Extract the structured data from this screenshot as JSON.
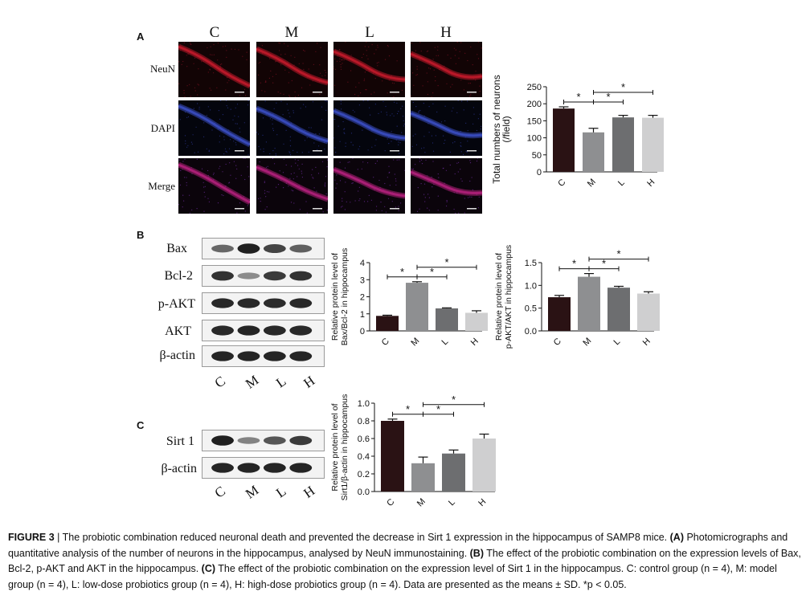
{
  "panels": {
    "a": {
      "letter": "A",
      "columns": [
        "C",
        "M",
        "L",
        "H"
      ],
      "rows": [
        "NeuN",
        "DAPI",
        "Merge"
      ]
    },
    "b": {
      "letter": "B",
      "blot_rows": [
        "Bax",
        "Bcl-2",
        "p-AKT",
        "AKT",
        "β-actin"
      ],
      "lanes": [
        "C",
        "M",
        "L",
        "H"
      ]
    },
    "c": {
      "letter": "C",
      "blot_rows": [
        "Sirt 1",
        "β-actin"
      ],
      "lanes": [
        "C",
        "M",
        "L",
        "H"
      ]
    }
  },
  "chart_data": [
    {
      "id": "neurons",
      "type": "bar",
      "categories": [
        "C",
        "M",
        "L",
        "H"
      ],
      "values": [
        186,
        116,
        160,
        159
      ],
      "errors": [
        5,
        12,
        6,
        7
      ],
      "colors": [
        "#2a1214",
        "#8e8f91",
        "#6d6e70",
        "#cfcfd0"
      ],
      "ylabel": [
        "Total numbers of neurons",
        "(/field)"
      ],
      "ylim": [
        0,
        250
      ],
      "yticks": [
        "0",
        "50",
        "100",
        "150",
        "200",
        "250"
      ],
      "significance": [
        {
          "from": "C",
          "to": "M",
          "label": "*"
        },
        {
          "from": "M",
          "to": "L",
          "label": "*"
        },
        {
          "from": "M",
          "to": "H",
          "label": "*"
        }
      ]
    },
    {
      "id": "bax_bcl2",
      "type": "bar",
      "categories": [
        "C",
        "M",
        "L",
        "H"
      ],
      "values": [
        0.88,
        2.82,
        1.32,
        1.06
      ],
      "errors": [
        0.04,
        0.06,
        0.03,
        0.12
      ],
      "colors": [
        "#2a1214",
        "#8e8f91",
        "#6d6e70",
        "#cfcfd0"
      ],
      "ylabel": [
        "Relative protein level of",
        "Bax/Bcl-2 in hippocampus"
      ],
      "ylim": [
        0,
        4
      ],
      "yticks": [
        "0",
        "1",
        "2",
        "3",
        "4"
      ],
      "significance": [
        {
          "from": "C",
          "to": "M",
          "label": "*"
        },
        {
          "from": "M",
          "to": "L",
          "label": "*"
        },
        {
          "from": "M",
          "to": "H",
          "label": "*"
        }
      ]
    },
    {
      "id": "pakt_akt",
      "type": "bar",
      "categories": [
        "C",
        "M",
        "L",
        "H"
      ],
      "values": [
        0.74,
        1.19,
        0.95,
        0.82
      ],
      "errors": [
        0.04,
        0.07,
        0.03,
        0.04
      ],
      "colors": [
        "#2a1214",
        "#8e8f91",
        "#6d6e70",
        "#cfcfd0"
      ],
      "ylabel": [
        "Relative protein level of",
        "p-AKT/AKT in hippocampus"
      ],
      "ylim": [
        0,
        1.5
      ],
      "yticks": [
        "0.0",
        "0.5",
        "1.0",
        "1.5"
      ],
      "significance": [
        {
          "from": "C",
          "to": "M",
          "label": "*"
        },
        {
          "from": "M",
          "to": "L",
          "label": "*"
        },
        {
          "from": "M",
          "to": "H",
          "label": "*"
        }
      ]
    },
    {
      "id": "sirt1",
      "type": "bar",
      "categories": [
        "C",
        "M",
        "L",
        "H"
      ],
      "values": [
        0.8,
        0.32,
        0.43,
        0.6
      ],
      "errors": [
        0.02,
        0.07,
        0.04,
        0.05
      ],
      "colors": [
        "#2a1214",
        "#8e8f91",
        "#6d6e70",
        "#cfcfd0"
      ],
      "ylabel": [
        "Relative protein level of",
        "Sirt1/β-actin in hippocampus"
      ],
      "ylim": [
        0,
        1.0
      ],
      "yticks": [
        "0.0",
        "0.2",
        "0.4",
        "0.6",
        "0.8",
        "1.0"
      ],
      "significance": [
        {
          "from": "C",
          "to": "M",
          "label": "*"
        },
        {
          "from": "M",
          "to": "L",
          "label": "*"
        },
        {
          "from": "M",
          "to": "H",
          "label": "*"
        }
      ]
    }
  ],
  "caption": {
    "figure_label": "FIGURE 3",
    "separator": " | ",
    "s1": "The probiotic combination reduced neuronal death and prevented the decrease in Sirt 1 expression in the hippocampus of SAMP8 mice. ",
    "a_tag": "(A)",
    "s2": " Photomicrographs and quantitative analysis of the number of neurons in the hippocampus, analysed by NeuN immunostaining. ",
    "b_tag": "(B)",
    "s3": " The effect of the probiotic combination on the expression levels of Bax, Bcl-2, p-AKT and AKT in the hippocampus. ",
    "c_tag": "(C)",
    "s4": " The effect of the probiotic combination on the expression level of Sirt 1 in the hippocampus. C: control group (n = 4), M: model group (n = 4), L: low-dose probiotics group (n = 4), H: high-dose probiotics group (n = 4). Data are presented as the means ± SD. *p < 0.05."
  }
}
